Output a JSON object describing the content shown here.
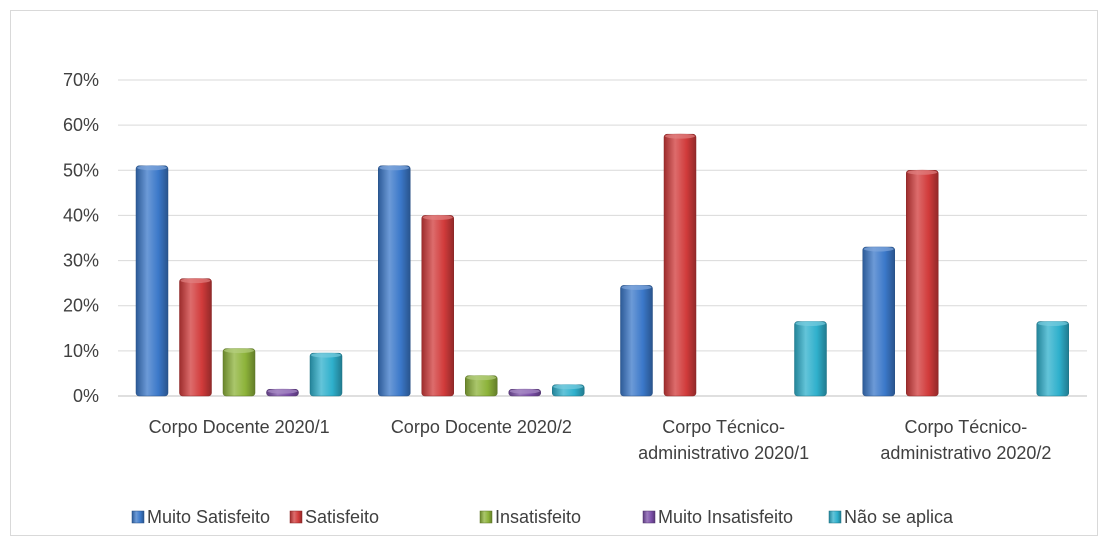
{
  "chart_data": {
    "type": "bar",
    "title": "",
    "xlabel": "",
    "ylabel": "",
    "ylim": [
      0,
      70
    ],
    "y_ticks": [
      "0%",
      "10%",
      "20%",
      "30%",
      "40%",
      "50%",
      "60%",
      "70%"
    ],
    "grid": true,
    "legend_position": "bottom",
    "categories": [
      [
        "Corpo Docente 2020/1"
      ],
      [
        "Corpo Docente 2020/2"
      ],
      [
        "Corpo Técnico-",
        "administrativo 2020/1"
      ],
      [
        "Corpo Técnico-",
        "administrativo 2020/2"
      ]
    ],
    "series": [
      {
        "name": "Muito Satisfeito",
        "color": "#3b78c9",
        "values": [
          51,
          51,
          24.5,
          33
        ]
      },
      {
        "name": "Satisfeito",
        "color": "#d13b3b",
        "values": [
          26,
          40,
          58,
          50
        ]
      },
      {
        "name": "Insatisfeito",
        "color": "#8db33a",
        "values": [
          10.5,
          4.5,
          0,
          0
        ]
      },
      {
        "name": "Muito Insatisfeito",
        "color": "#7b4fa8",
        "values": [
          1.5,
          1.5,
          0,
          0
        ]
      },
      {
        "name": "Não se aplica",
        "color": "#2fb0cc",
        "values": [
          9.5,
          2.5,
          16.5,
          16.5
        ]
      }
    ]
  }
}
